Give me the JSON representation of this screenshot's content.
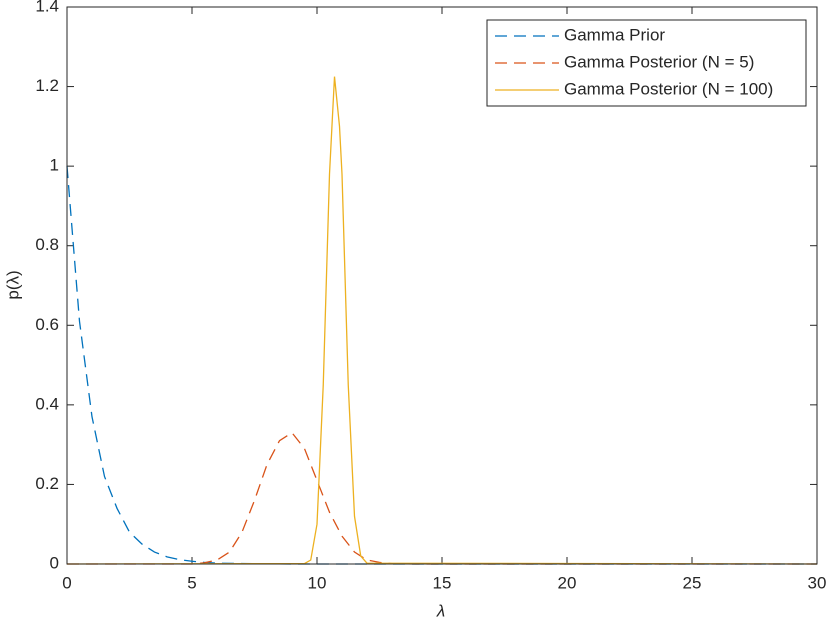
{
  "chart_data": {
    "type": "line",
    "xlabel": "λ",
    "ylabel": "p(λ)",
    "xlim": [
      0,
      30
    ],
    "ylim": [
      0,
      1.4
    ],
    "xticks": [
      0,
      5,
      10,
      15,
      20,
      25,
      30
    ],
    "yticks": [
      0,
      0.2,
      0.4,
      0.6,
      0.8,
      1,
      1.2,
      1.4
    ],
    "legend": "top-right",
    "series": [
      {
        "name": "Gamma Prior",
        "color": "#0072bd",
        "linestyle": "dashed",
        "x": [
          0,
          0.5,
          1,
          1.5,
          2,
          2.5,
          3,
          3.5,
          4,
          4.5,
          5,
          5.5,
          6,
          8,
          10,
          30
        ],
        "values": [
          1,
          0.61,
          0.37,
          0.22,
          0.14,
          0.08,
          0.05,
          0.03,
          0.018,
          0.011,
          0.007,
          0.004,
          0.002,
          0.0003,
          0,
          0
        ]
      },
      {
        "name": "Gamma Posterior (N = 5)",
        "color": "#d95319",
        "linestyle": "dashed",
        "x": [
          0,
          5,
          5.5,
          6,
          6.5,
          7,
          7.5,
          8,
          8.5,
          9,
          9.5,
          10,
          10.5,
          11,
          11.5,
          12,
          12.5,
          13,
          14,
          30
        ],
        "values": [
          0,
          0,
          0.003,
          0.01,
          0.03,
          0.08,
          0.16,
          0.25,
          0.31,
          0.33,
          0.29,
          0.21,
          0.13,
          0.07,
          0.03,
          0.01,
          0.004,
          0.001,
          0,
          0
        ]
      },
      {
        "name": "Gamma Posterior (N = 100)",
        "color": "#edb120",
        "linestyle": "solid",
        "x": [
          0,
          9.5,
          9.75,
          10,
          10.25,
          10.5,
          10.7,
          10.9,
          11,
          11.25,
          11.5,
          11.75,
          12,
          30
        ],
        "values": [
          0,
          0.001,
          0.01,
          0.1,
          0.45,
          0.98,
          1.225,
          1.1,
          0.98,
          0.45,
          0.12,
          0.02,
          0.002,
          0
        ]
      }
    ]
  }
}
